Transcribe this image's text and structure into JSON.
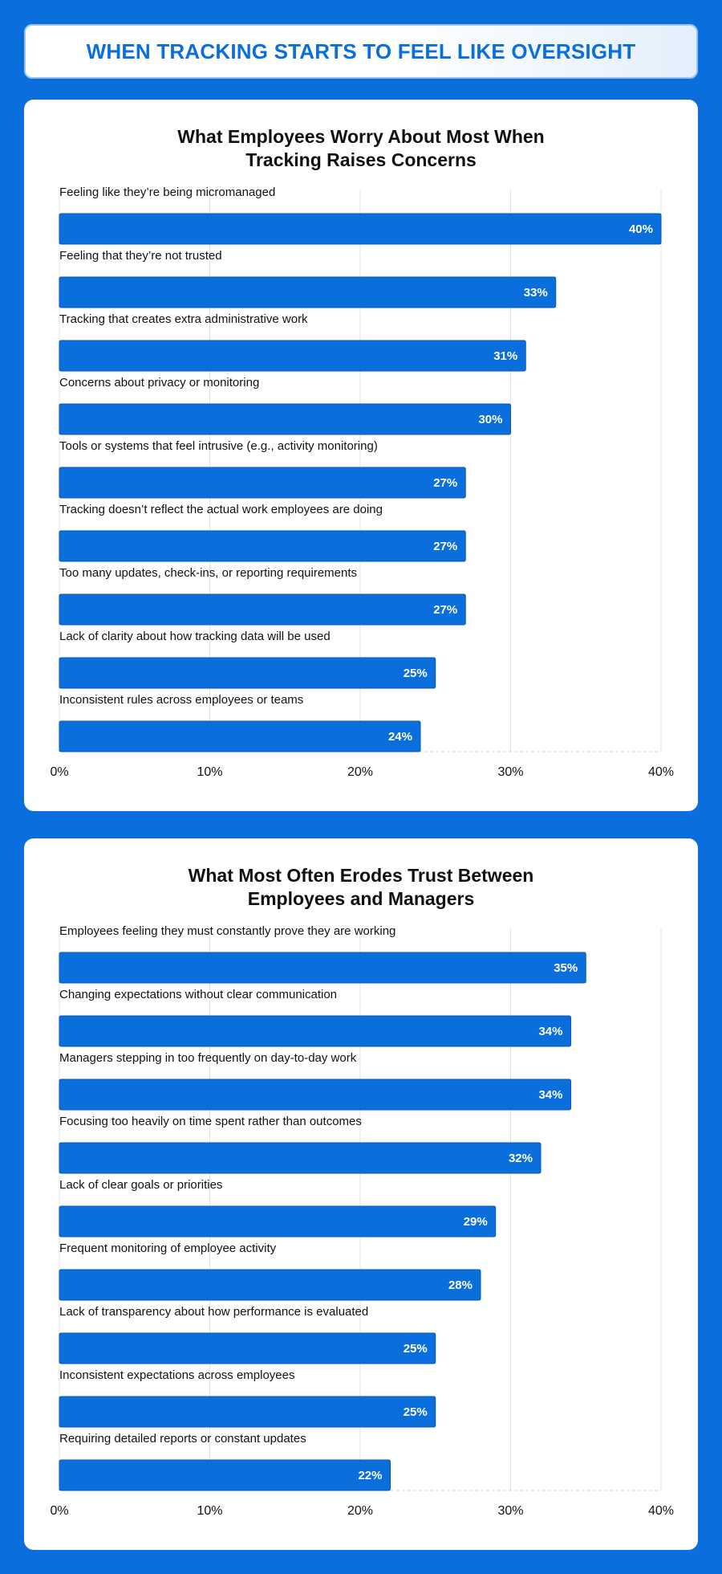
{
  "banner": {
    "title": "WHEN TRACKING STARTS TO FEEL LIKE OVERSIGHT"
  },
  "colors": {
    "background": "#0a6fdc",
    "bar": "#0a6fdc",
    "card": "#ffffff",
    "grid": "#e3e3e3"
  },
  "chart_data": [
    {
      "type": "bar",
      "orientation": "horizontal",
      "title": "What Employees Worry About Most When\nTracking Raises Concerns",
      "categories": [
        "Feeling like they’re being micromanaged",
        "Feeling that they’re not trusted",
        "Tracking that creates extra administrative work",
        "Concerns about privacy or monitoring",
        "Tools or systems that feel intrusive (e.g., activity monitoring)",
        "Tracking doesn’t reflect the actual work employees are doing",
        "Too many updates, check-ins, or reporting requirements",
        "Lack of clarity about how tracking data will be used",
        "Inconsistent rules across employees or teams"
      ],
      "values": [
        40,
        33,
        31,
        30,
        27,
        27,
        27,
        25,
        24
      ],
      "value_labels": [
        "40%",
        "33%",
        "31%",
        "30%",
        "27%",
        "27%",
        "27%",
        "25%",
        "24%"
      ],
      "xlim": [
        0,
        40
      ],
      "xticks": [
        0,
        10,
        20,
        30,
        40
      ],
      "xtick_labels": [
        "0%",
        "10%",
        "20%",
        "30%",
        "40%"
      ],
      "grid": true
    },
    {
      "type": "bar",
      "orientation": "horizontal",
      "title": "What Most Often Erodes Trust Between\nEmployees and Managers",
      "categories": [
        "Employees feeling they must constantly prove they are working",
        "Changing expectations without clear communication",
        "Managers stepping in too frequently on day-to-day work",
        "Focusing too heavily on time spent rather than outcomes",
        "Lack of clear goals or priorities",
        "Frequent monitoring of employee activity",
        "Lack of transparency about how performance is evaluated",
        "Inconsistent expectations across employees",
        "Requiring detailed reports or constant updates"
      ],
      "values": [
        35,
        34,
        34,
        32,
        29,
        28,
        25,
        25,
        22
      ],
      "value_labels": [
        "35%",
        "34%",
        "34%",
        "32%",
        "29%",
        "28%",
        "25%",
        "25%",
        "22%"
      ],
      "xlim": [
        0,
        40
      ],
      "xticks": [
        0,
        10,
        20,
        30,
        40
      ],
      "xtick_labels": [
        "0%",
        "10%",
        "20%",
        "30%",
        "40%"
      ],
      "grid": true
    }
  ]
}
